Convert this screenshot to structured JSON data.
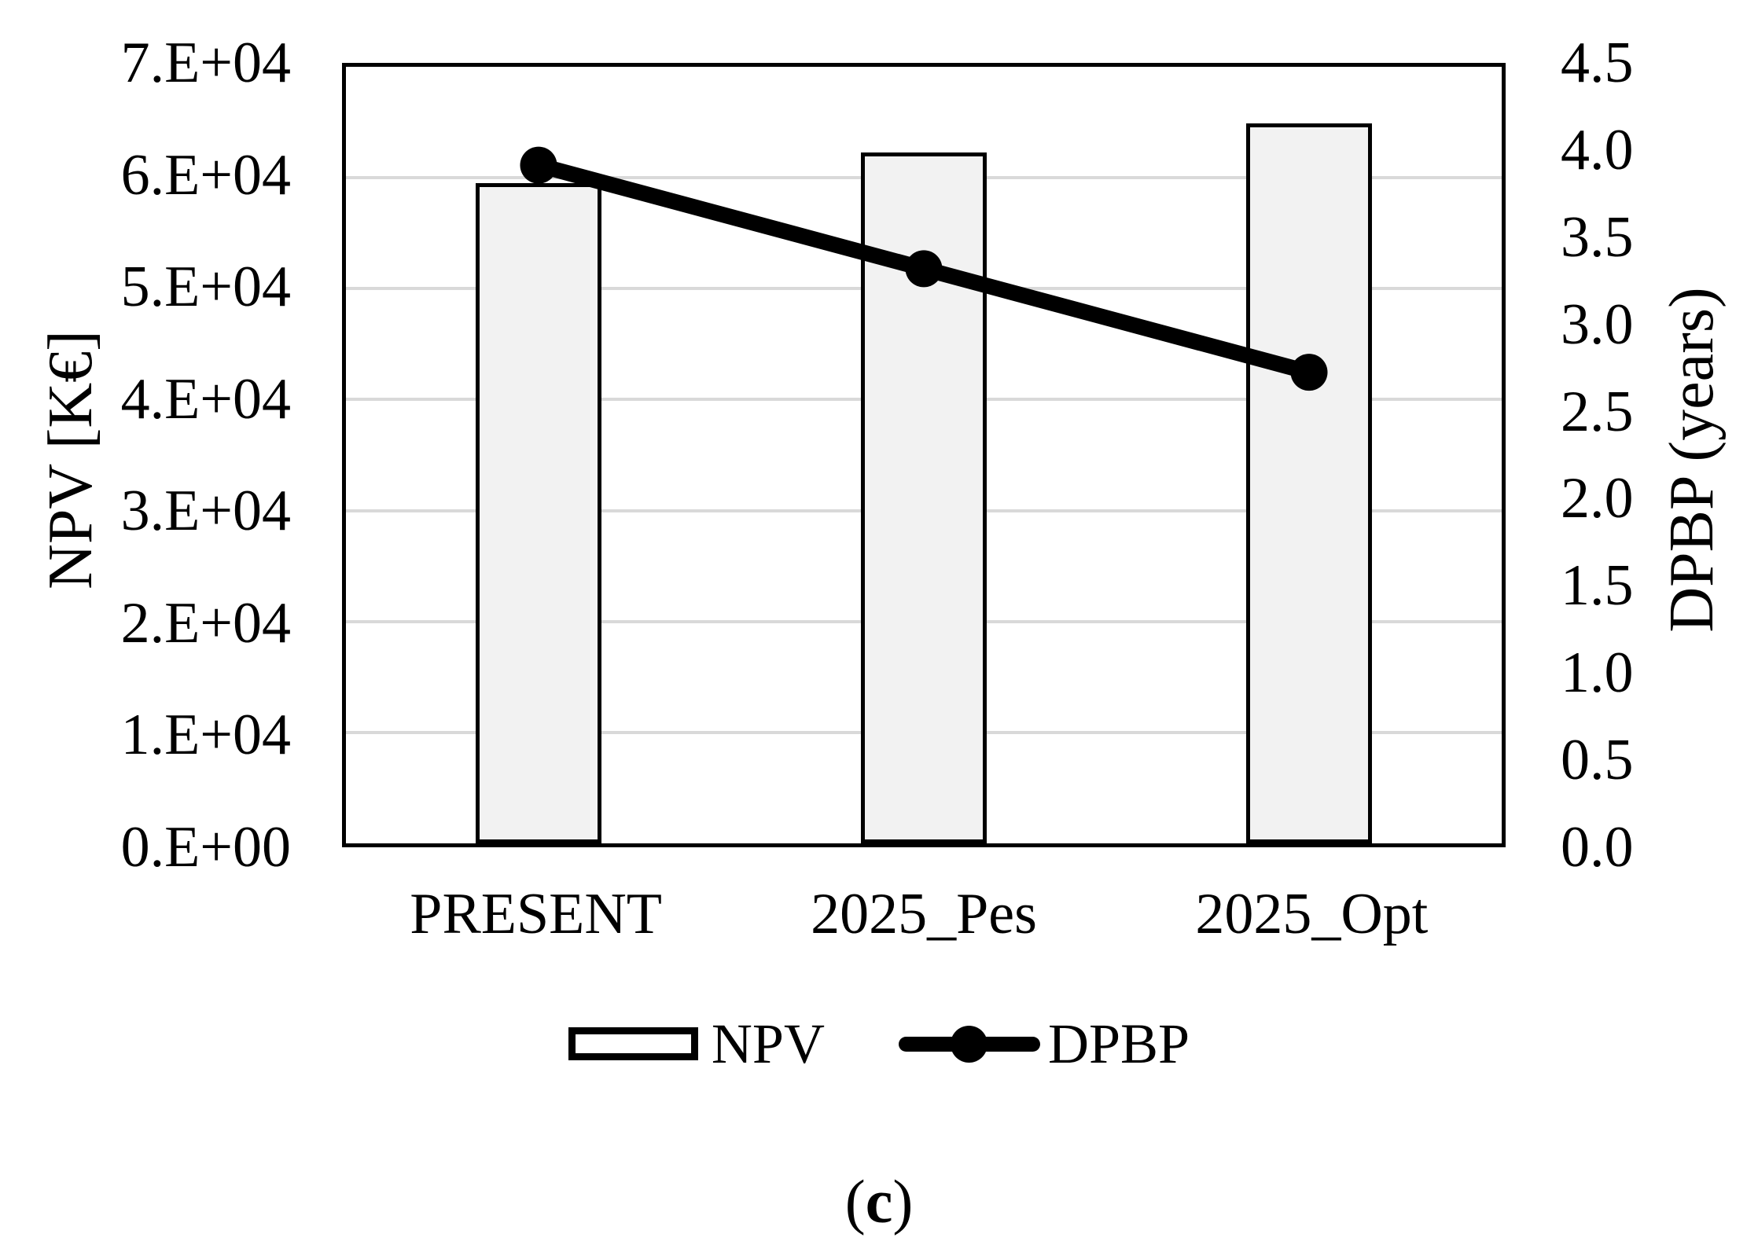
{
  "figure": {
    "caption": {
      "open": "(",
      "letter": "c",
      "close": ")"
    }
  },
  "chart_data": {
    "type": "bar+line combo",
    "categories": [
      "PRESENT",
      "2025_Pes",
      "2025_Opt"
    ],
    "series": [
      {
        "name": "NPV",
        "type": "bar",
        "axis": "left",
        "values": [
          59500,
          62300,
          64900
        ]
      },
      {
        "name": "DPBP",
        "type": "line",
        "axis": "right",
        "values": [
          3.93,
          3.33,
          2.73
        ]
      }
    ],
    "left_axis": {
      "title": "NPV [K€]",
      "min": 0,
      "max": 70000,
      "tick_step": 10000,
      "tick_labels": [
        "0.E+00",
        "1.E+04",
        "2.E+04",
        "3.E+04",
        "4.E+04",
        "5.E+04",
        "6.E+04",
        "7.E+04"
      ]
    },
    "right_axis": {
      "title": "DPBP (years)",
      "min": 0,
      "max": 4.5,
      "tick_step": 0.5,
      "tick_labels": [
        "0.0",
        "0.5",
        "1.0",
        "1.5",
        "2.0",
        "2.5",
        "3.0",
        "3.5",
        "4.0",
        "4.5"
      ]
    },
    "legend": [
      "NPV",
      "DPBP"
    ],
    "grid": true,
    "colors": {
      "bar_fill": "#f2f2f2",
      "bar_border": "#000000",
      "line": "#000000",
      "gridline": "#d9d9d9",
      "frame": "#000000"
    }
  }
}
